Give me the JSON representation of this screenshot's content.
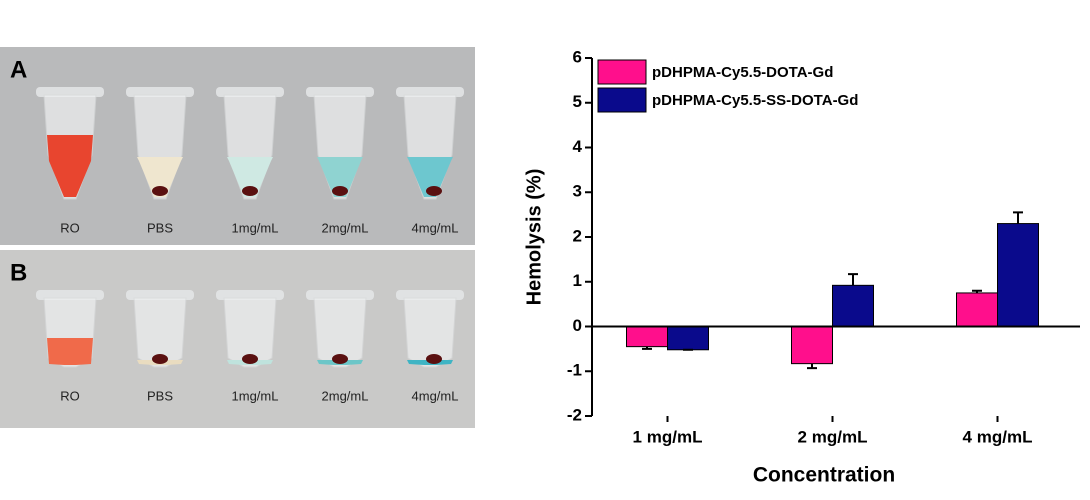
{
  "photos": [
    {
      "label": "A",
      "tubes": [
        "RO",
        "PBS",
        "1mg/mL",
        "2mg/mL",
        "4mg/mL"
      ]
    },
    {
      "label": "B",
      "tubes": [
        "RO",
        "PBS",
        "1mg/mL",
        "2mg/mL",
        "4mg/mL"
      ]
    }
  ],
  "chart_data": {
    "type": "bar",
    "x_label": "Concentration",
    "y_label": "Hemolysis (%)",
    "categories": [
      "1 mg/mL",
      "2 mg/mL",
      "4 mg/mL"
    ],
    "series": [
      {
        "name": "pDHPMA-Cy5.5-DOTA-Gd",
        "color": "#ff0f8c",
        "values": [
          -0.45,
          -0.83,
          0.75
        ],
        "errors": [
          0.05,
          0.1,
          0.05
        ]
      },
      {
        "name": "pDHPMA-Cy5.5-SS-DOTA-Gd",
        "color": "#0a0a8c",
        "values": [
          -0.52,
          0.92,
          2.3
        ],
        "errors": [
          0,
          0.25,
          0.25
        ]
      }
    ],
    "ylim": [
      -2,
      6
    ],
    "yticks": [
      -2,
      -1,
      0,
      1,
      2,
      3,
      4,
      5,
      6
    ],
    "legend": "upper left"
  }
}
